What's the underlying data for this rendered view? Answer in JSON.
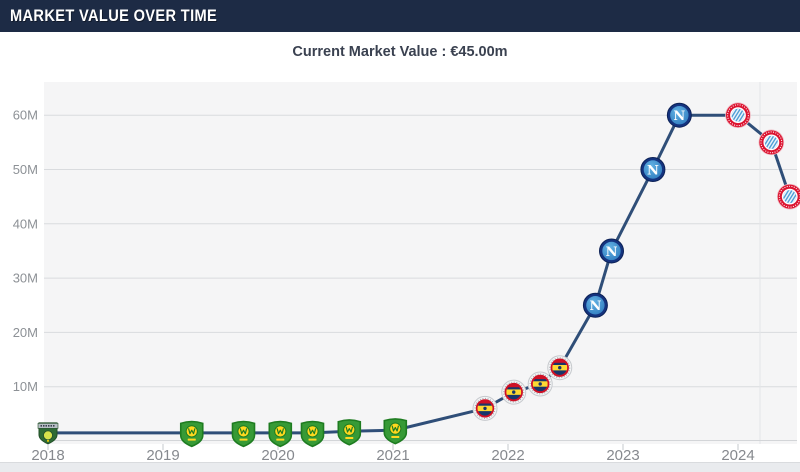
{
  "header": {
    "title": "MARKET VALUE OVER TIME"
  },
  "subtitle": {
    "label": "Current Market Value :",
    "value": "€45.00m"
  },
  "colors": {
    "header_bg": "#1d2b45",
    "header_text": "#ffffff",
    "subtitle_text": "#3a4150",
    "plot_bg": "#f5f5f6",
    "grid": "#d9dbde",
    "axis_line": "#d3d5d8",
    "tick": "#c6c9cd",
    "axis_label": "#8d9196",
    "x_label": "#86898e",
    "line": "#2f4e78",
    "footer_strip": "#e9ebee"
  },
  "chart_data": {
    "type": "line",
    "title": "MARKET VALUE OVER TIME",
    "xlabel": "",
    "ylabel": "",
    "legend": "none",
    "grid": "horizontal",
    "current_market_value": "€45.00m",
    "xlim": [
      2017.97,
      2024.52
    ],
    "ylim": [
      0,
      66
    ],
    "x_ticks": [
      "2018",
      "2019",
      "2020",
      "2021",
      "2022",
      "2023",
      "2024"
    ],
    "y_ticks": [
      {
        "value": 10,
        "label": "10M"
      },
      {
        "value": 20,
        "label": "20M"
      },
      {
        "value": 30,
        "label": "30M"
      },
      {
        "value": 40,
        "label": "40M"
      },
      {
        "value": 50,
        "label": "50M"
      },
      {
        "value": 60,
        "label": "60M"
      }
    ],
    "points": [
      {
        "t": 2018.0,
        "value_m": 1.5,
        "club": "jeonbuk"
      },
      {
        "t": 2019.25,
        "value_m": 1.5,
        "club": "beijing-guoan"
      },
      {
        "t": 2019.7,
        "value_m": 1.5,
        "club": "beijing-guoan"
      },
      {
        "t": 2020.02,
        "value_m": 1.5,
        "club": "beijing-guoan"
      },
      {
        "t": 2020.3,
        "value_m": 1.5,
        "club": "beijing-guoan"
      },
      {
        "t": 2020.62,
        "value_m": 1.8,
        "club": "beijing-guoan"
      },
      {
        "t": 2021.02,
        "value_m": 2.0,
        "club": "beijing-guoan"
      },
      {
        "t": 2021.8,
        "value_m": 6.0,
        "club": "fenerbahce"
      },
      {
        "t": 2022.05,
        "value_m": 9.0,
        "club": "fenerbahce"
      },
      {
        "t": 2022.28,
        "value_m": 10.5,
        "club": "fenerbahce"
      },
      {
        "t": 2022.45,
        "value_m": 13.5,
        "club": "fenerbahce"
      },
      {
        "t": 2022.76,
        "value_m": 25.0,
        "club": "napoli"
      },
      {
        "t": 2022.9,
        "value_m": 35.0,
        "club": "napoli"
      },
      {
        "t": 2023.26,
        "value_m": 50.0,
        "club": "napoli"
      },
      {
        "t": 2023.49,
        "value_m": 60.0,
        "club": "napoli"
      },
      {
        "t": 2024.0,
        "value_m": 60.0,
        "club": "bayern-munich"
      },
      {
        "t": 2024.29,
        "value_m": 55.0,
        "club": "bayern-munich"
      },
      {
        "t": 2024.45,
        "value_m": 45.0,
        "club": "bayern-munich"
      }
    ]
  },
  "clubs": {
    "jeonbuk": {
      "name": "Jeonbuk Hyundai Motors",
      "shield": "#2e6b35",
      "shield_border": "#234f28",
      "banner": "#b7bec4",
      "center": "#d6e24c"
    },
    "beijing-guoan": {
      "name": "Beijing Guoan",
      "shield": "#379a36",
      "shield_border": "#1e7c20",
      "emblem": "#ffd81f"
    },
    "fenerbahce": {
      "name": "Fenerbahce",
      "navy": "#17366b",
      "yellow": "#fed933",
      "red": "#cf1126",
      "ring": "#c6c9cd"
    },
    "napoli": {
      "name": "SSC Napoli",
      "outer": "#14337f",
      "outer_border": "#0d2257",
      "inner_light": "#63b3e4",
      "inner_dark": "#2e7abe",
      "letter": "#ffffff"
    },
    "bayern-munich": {
      "name": "FC Bayern Munchen",
      "red": "#dc1431",
      "blue": "#4f9ed6",
      "white": "#ffffff"
    }
  }
}
